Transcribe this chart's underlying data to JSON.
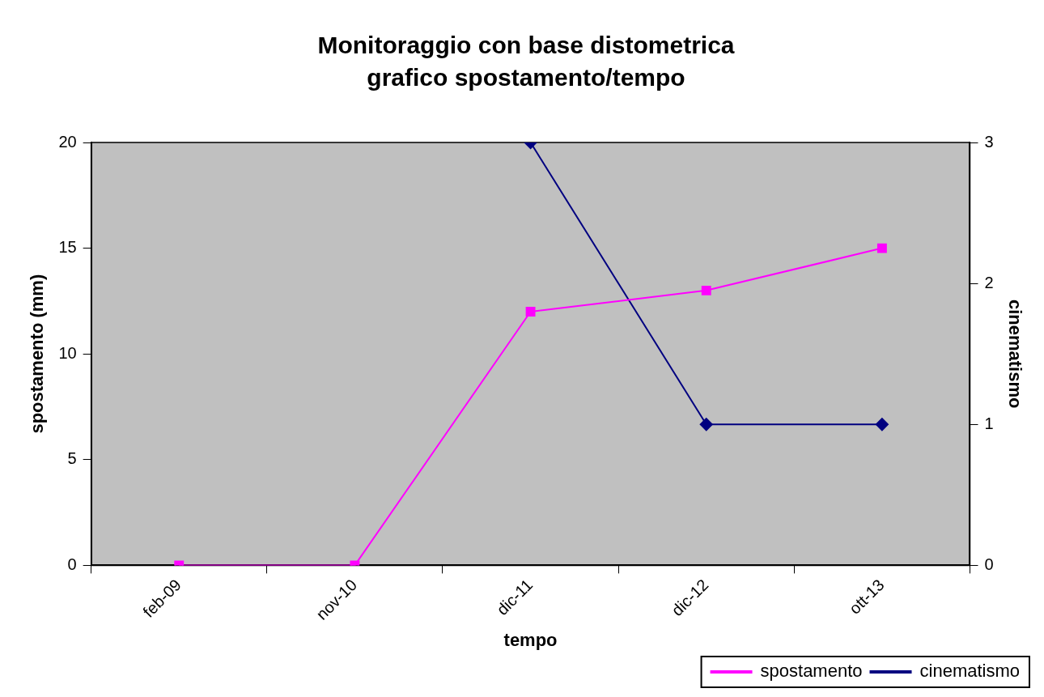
{
  "chart_data": {
    "type": "line",
    "title": "Monitoraggio con base distometrica",
    "subtitle": "grafico spostamento/tempo",
    "xlabel": "tempo",
    "ylabel": "spostamento (mm)",
    "y2label": "cinematismo",
    "categories": [
      "feb-09",
      "nov-10",
      "dic-11",
      "dic-12",
      "ott-13"
    ],
    "series": [
      {
        "name": "spostamento",
        "color": "#ff00ff",
        "values": [
          0,
          0,
          12,
          13,
          15
        ],
        "marker": "square"
      },
      {
        "name": "cinematismo",
        "color": "#000080",
        "values": [
          null,
          null,
          3,
          1,
          1
        ],
        "axis": "y2",
        "marker": "diamond"
      }
    ],
    "ylim": [
      0,
      20
    ],
    "yticks": [
      0,
      5,
      10,
      15,
      20
    ],
    "y2lim": [
      0,
      3
    ],
    "y2ticks": [
      0,
      1,
      2,
      3
    ],
    "grid": false,
    "legend": "bottom right",
    "line_style": "solid"
  }
}
